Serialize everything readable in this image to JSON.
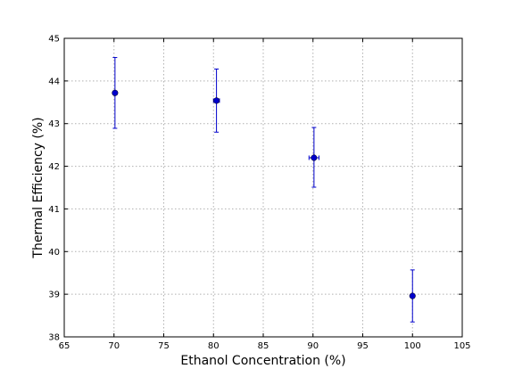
{
  "chart_data": {
    "type": "scatter",
    "title": "",
    "xlabel": "Ethanol Concentration (%)",
    "ylabel": "Thermal Efficiency (%)",
    "xlim": [
      65,
      105
    ],
    "ylim": [
      38,
      45
    ],
    "xticks": [
      65,
      70,
      75,
      80,
      85,
      90,
      95,
      100,
      105
    ],
    "yticks": [
      38,
      39,
      40,
      41,
      42,
      43,
      44,
      45
    ],
    "grid": true,
    "series": [
      {
        "color": "#0000cc",
        "marker": "circle",
        "points": [
          {
            "x": 70.1,
            "y": 43.72,
            "y_err_low": 0.83,
            "y_err_high": 0.83,
            "x_err": 0.2
          },
          {
            "x": 80.3,
            "y": 43.54,
            "y_err_low": 0.74,
            "y_err_high": 0.74,
            "x_err": 0.3
          },
          {
            "x": 90.1,
            "y": 42.2,
            "y_err_low": 0.69,
            "y_err_high": 0.71,
            "x_err": 0.5
          },
          {
            "x": 100.0,
            "y": 38.96,
            "y_err_low": 0.61,
            "y_err_high": 0.61,
            "x_err": 0.2
          }
        ]
      }
    ]
  }
}
